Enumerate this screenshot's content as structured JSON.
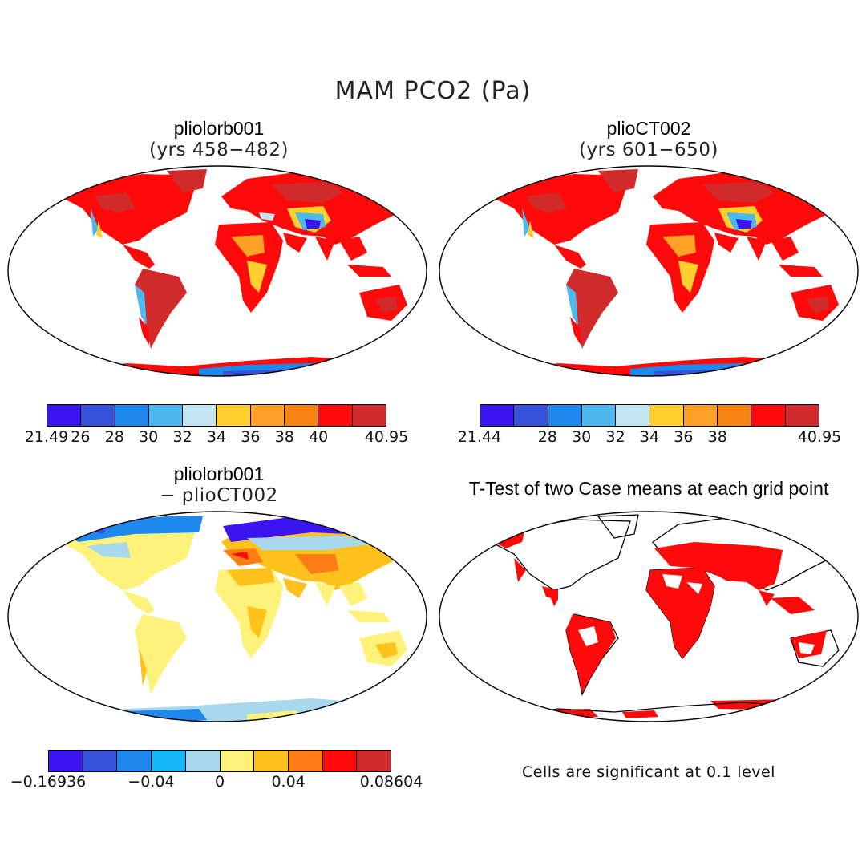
{
  "title": "MAM PCO2 (Pa)",
  "panels": {
    "top_left": {
      "title": "pliolorb001",
      "subtitle": "(yrs 458−482)"
    },
    "top_right": {
      "title": "plioCT002",
      "subtitle": "(yrs 601−650)"
    },
    "bottom_left": {
      "title": "pliolorb001",
      "subtitle": "− plioCT002"
    },
    "bottom_right": {
      "title": "T-Test of two Case means at each grid point",
      "note": "Cells are significant at 0.1 level"
    }
  },
  "colorbars": {
    "top_left": {
      "colors": [
        "#3b14f0",
        "#3652d8",
        "#1e88ee",
        "#4cb8ee",
        "#c4e4f2",
        "#ffd02e",
        "#ffa126",
        "#f88412",
        "#ff0a0a",
        "#d12a2a"
      ],
      "labels": [
        "21.49",
        "26",
        "28",
        "30",
        "32",
        "34",
        "36",
        "38",
        "40",
        "40.95"
      ]
    },
    "top_right": {
      "colors": [
        "#3b14f0",
        "#3652d8",
        "#1e88ee",
        "#4cb8ee",
        "#c4e4f2",
        "#ffd02e",
        "#ffa126",
        "#f88412",
        "#ff0a0a",
        "#d12a2a"
      ],
      "labels": [
        "21.44",
        "28",
        "30",
        "32",
        "34",
        "36",
        "38",
        "40.95"
      ]
    },
    "bottom_left": {
      "colors": [
        "#3b14f0",
        "#3652d8",
        "#1e88ee",
        "#15b8f5",
        "#a8d8ee",
        "#fff27a",
        "#ffc21c",
        "#ff7d14",
        "#ff0a0a",
        "#d12a2a"
      ],
      "labels": [
        "−0.16936",
        "−0.04",
        "0",
        "0.04",
        "0.08604"
      ]
    }
  }
}
